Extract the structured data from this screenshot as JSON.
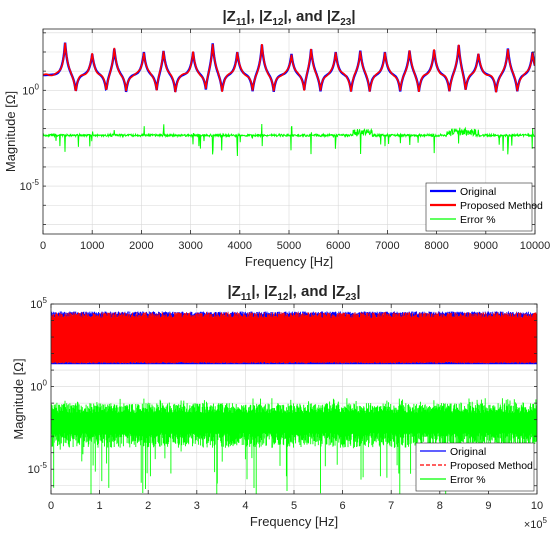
{
  "figure": {
    "background": "#ffffff",
    "axes_color": "#262626",
    "grid_color": "#d9d9d9"
  },
  "chart_data": [
    {
      "type": "line",
      "title": "|Z11|, |Z12|, and |Z23|",
      "title_parts": [
        "|Z",
        "11",
        "|, |Z",
        "12",
        "|, and |Z",
        "23",
        "|"
      ],
      "xlabel": "Frequency [Hz]",
      "ylabel": "Magnitude [Ω]",
      "xlim": [
        0,
        10000
      ],
      "ylim_log10": [
        -7.5,
        3.2
      ],
      "yscale": "log",
      "grid": true,
      "x_ticks": [
        0,
        1000,
        2000,
        3000,
        4000,
        5000,
        6000,
        7000,
        8000,
        9000,
        10000
      ],
      "x_tick_labels": [
        "0",
        "1000",
        "2000",
        "3000",
        "4000",
        "5000",
        "6000",
        "7000",
        "8000",
        "9000",
        "10000"
      ],
      "y_tick_labels": [
        {
          "base": "10",
          "exp": "0",
          "log10": 0
        },
        {
          "base": "10",
          "exp": "-5",
          "log10": -5
        }
      ],
      "resonance_peaks_hz": [
        450,
        1000,
        1450,
        2050,
        2450,
        3050,
        3450,
        3950,
        4450,
        5050,
        5450,
        5950,
        6450,
        6950,
        7450,
        7950,
        8450,
        8850,
        9450,
        9950
      ],
      "peak_heights_log10": [
        2.5,
        1.9,
        2.2,
        2.0,
        2.1,
        2.0,
        2.5,
        2.0,
        2.4,
        1.9,
        2.2,
        2.0,
        2.1,
        2.0,
        2.1,
        2.1,
        2.4,
        1.9,
        2.2,
        2.0
      ],
      "baseline_log10": 0.8,
      "antiresonance_log10": 0.3,
      "error_baseline_log10": -2.35,
      "series": [
        {
          "name": "Original",
          "color": "#0000ff",
          "style": "solid"
        },
        {
          "name": "Proposed Method",
          "color": "#ff0000",
          "style": "solid"
        },
        {
          "name": "Error %",
          "color": "#00ff00",
          "style": "solid"
        }
      ],
      "legend_location": "bottom-right"
    },
    {
      "type": "line",
      "title": "|Z11|, |Z12|, and |Z23|",
      "title_parts": [
        "|Z",
        "11",
        "|, |Z",
        "12",
        "|, and |Z",
        "23",
        "|"
      ],
      "xlabel": "Frequency [Hz]",
      "ylabel": "Magnitude [Ω]",
      "xlim": [
        0,
        1000000
      ],
      "x_exponent": {
        "base": "×10",
        "exp": "5"
      },
      "ylim_log10": [
        -6.5,
        5
      ],
      "yscale": "log",
      "grid": true,
      "x_ticks": [
        0,
        100000,
        200000,
        300000,
        400000,
        500000,
        600000,
        700000,
        800000,
        900000,
        1000000
      ],
      "x_tick_labels": [
        "0",
        "1",
        "2",
        "3",
        "4",
        "5",
        "6",
        "7",
        "8",
        "9",
        "10"
      ],
      "y_tick_labels": [
        {
          "base": "10",
          "exp": "5",
          "log10": 5
        },
        {
          "base": "10",
          "exp": "0",
          "log10": 0
        },
        {
          "base": "10",
          "exp": "-5",
          "log10": -5
        }
      ],
      "magnitude_band_log10": [
        1.4,
        4.5
      ],
      "error_band_log10": [
        -2.8,
        -1.0
      ],
      "error_min_log10": -6.2,
      "series": [
        {
          "name": "Original",
          "color": "#0000ff",
          "style": "solid"
        },
        {
          "name": "Proposed Method",
          "color": "#ff0000",
          "style": "dashed"
        },
        {
          "name": "Error %",
          "color": "#00ff00",
          "style": "solid"
        }
      ],
      "legend_location": "bottom-right"
    }
  ]
}
